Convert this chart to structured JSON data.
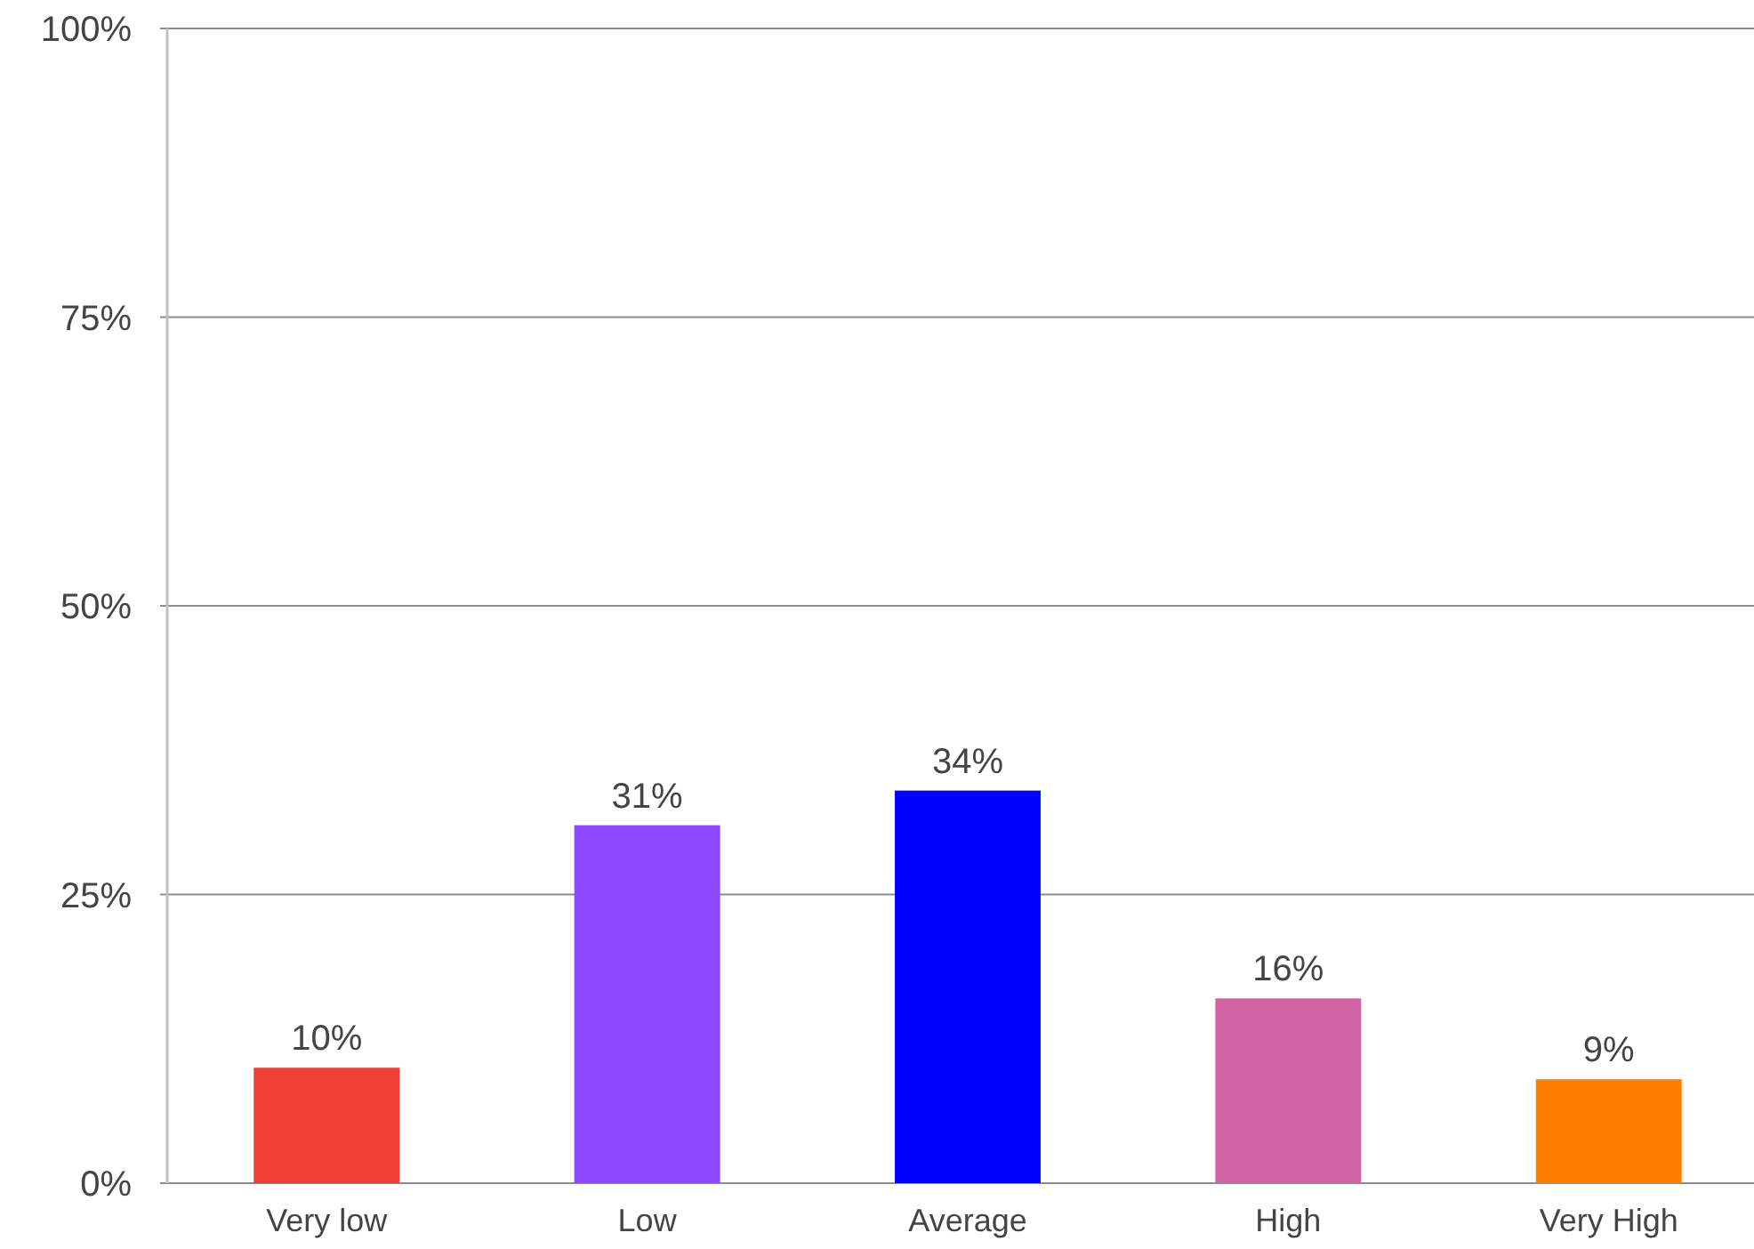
{
  "chart_data": {
    "type": "bar",
    "categories": [
      "Very low",
      "Low",
      "Average",
      "High",
      "Very High"
    ],
    "values": [
      10,
      31,
      34,
      16,
      9
    ],
    "colors": [
      "#ef3e34",
      "#8c47ff",
      "#0000ff",
      "#d063a4",
      "#ff8000"
    ],
    "value_labels": [
      "10%",
      "31%",
      "34%",
      "16%",
      "9%"
    ],
    "ylim": [
      0,
      100
    ],
    "yticks": [
      {
        "value": 0,
        "label": "0%"
      },
      {
        "value": 25,
        "label": "25%"
      },
      {
        "value": 50,
        "label": "50%"
      },
      {
        "value": 75,
        "label": "75%"
      },
      {
        "value": 100,
        "label": "100%"
      }
    ],
    "grid": "y"
  }
}
